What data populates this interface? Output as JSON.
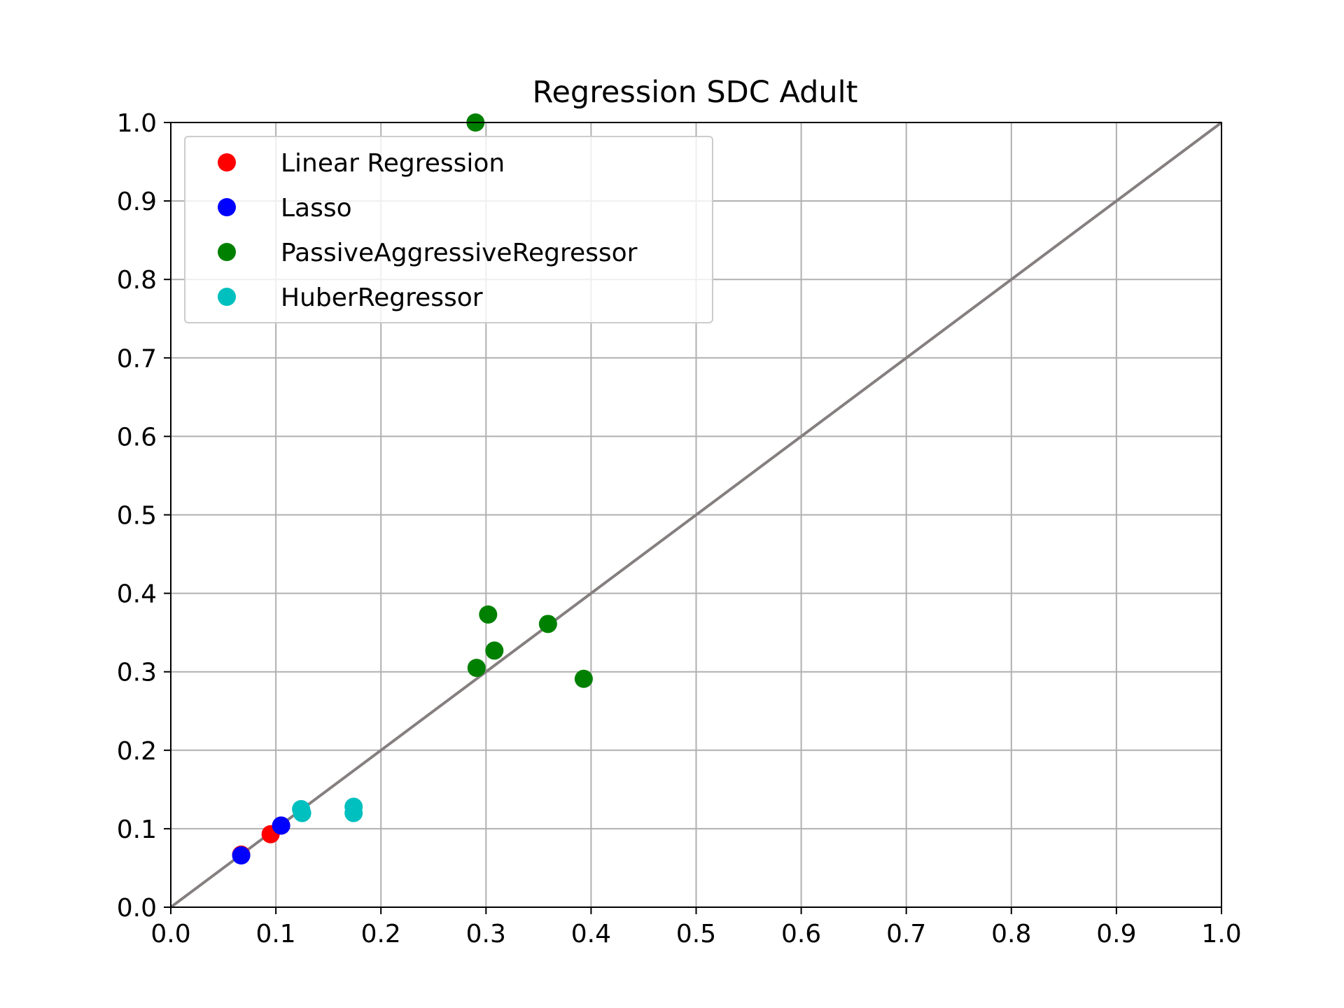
{
  "chart_data": {
    "type": "scatter",
    "title": "Regression SDC Adult",
    "xlabel": "",
    "ylabel": "",
    "xlim": [
      0.0,
      1.0
    ],
    "ylim": [
      0.0,
      1.0
    ],
    "xticks": [
      "0.0",
      "0.1",
      "0.2",
      "0.3",
      "0.4",
      "0.5",
      "0.6",
      "0.7",
      "0.8",
      "0.9",
      "1.0"
    ],
    "yticks": [
      "0.0",
      "0.1",
      "0.2",
      "0.3",
      "0.4",
      "0.5",
      "0.6",
      "0.7",
      "0.8",
      "0.9",
      "1.0"
    ],
    "grid": true,
    "legend_position": "top-left",
    "reference_line": {
      "from": [
        0,
        0
      ],
      "to": [
        1,
        1
      ],
      "color": "#857f7f"
    },
    "series": [
      {
        "name": "Linear Regression",
        "color": "#ff0000",
        "points": [
          [
            0.095,
            0.093
          ],
          [
            0.105,
            0.104
          ],
          [
            0.067,
            0.067
          ]
        ]
      },
      {
        "name": "Lasso",
        "color": "#0000ff",
        "points": [
          [
            0.067,
            0.066
          ],
          [
            0.105,
            0.104
          ]
        ]
      },
      {
        "name": "PassiveAggressiveRegressor",
        "color": "#008000",
        "points": [
          [
            0.29,
            1.0
          ],
          [
            0.302,
            0.373
          ],
          [
            0.359,
            0.361
          ],
          [
            0.308,
            0.327
          ],
          [
            0.291,
            0.305
          ],
          [
            0.393,
            0.291
          ]
        ]
      },
      {
        "name": "HuberRegressor",
        "color": "#00bfbf",
        "points": [
          [
            0.124,
            0.125
          ],
          [
            0.125,
            0.12
          ],
          [
            0.174,
            0.128
          ],
          [
            0.174,
            0.12
          ]
        ]
      }
    ]
  }
}
